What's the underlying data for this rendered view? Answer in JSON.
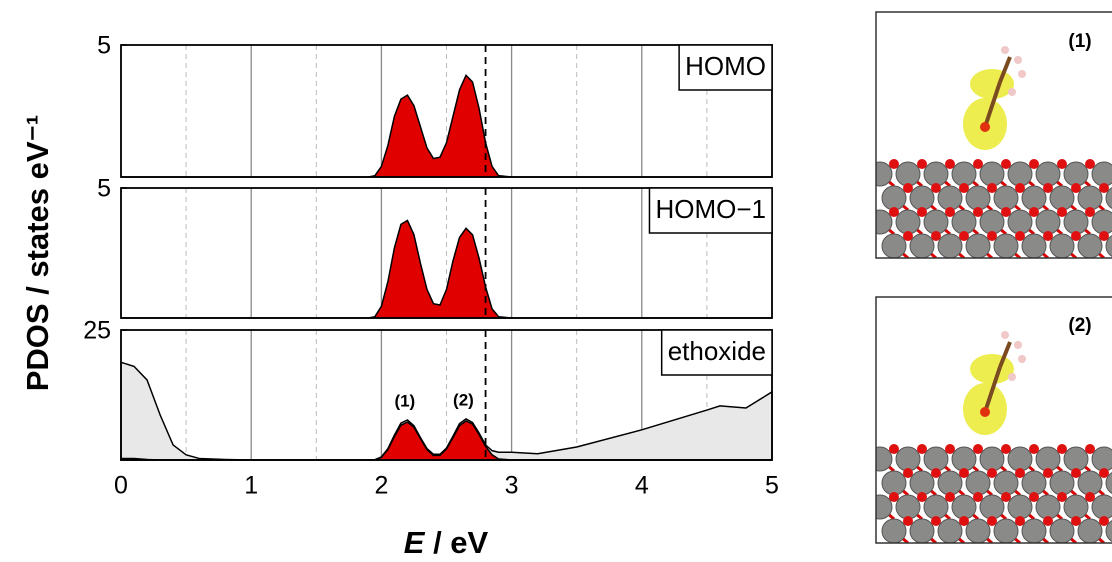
{
  "chart_data": [
    {
      "type": "area",
      "label": "HOMO",
      "xlim": [
        0,
        5
      ],
      "xticks": [
        0,
        1,
        2,
        3,
        4,
        5
      ],
      "xminor": [
        0.5,
        1.5,
        2.5,
        3.5,
        4.5
      ],
      "ylim": [
        0,
        5
      ],
      "yticks": [
        5
      ],
      "marker_line": 2.8,
      "x": [
        0,
        0.5,
        1,
        1.5,
        1.9,
        1.95,
        2.0,
        2.05,
        2.1,
        2.15,
        2.2,
        2.25,
        2.3,
        2.35,
        2.4,
        2.45,
        2.5,
        2.55,
        2.6,
        2.65,
        2.7,
        2.75,
        2.8,
        2.85,
        2.9,
        3.0,
        3.5,
        4,
        4.5,
        5
      ],
      "series": [
        {
          "color": "#e00000",
          "values": [
            0,
            0,
            0,
            0,
            0,
            0.05,
            0.4,
            1.2,
            2.3,
            2.95,
            3.1,
            2.7,
            1.9,
            1.1,
            0.7,
            0.75,
            1.3,
            2.3,
            3.3,
            3.85,
            3.6,
            2.6,
            1.3,
            0.4,
            0.05,
            0,
            0,
            0,
            0,
            0
          ]
        }
      ]
    },
    {
      "type": "area",
      "label": "HOMO−1",
      "y_label": "PDOS / states eV⁻¹",
      "xlim": [
        0,
        5
      ],
      "xticks": [
        0,
        1,
        2,
        3,
        4,
        5
      ],
      "xminor": [
        0.5,
        1.5,
        2.5,
        3.5,
        4.5
      ],
      "ylim": [
        0,
        5
      ],
      "yticks": [
        5
      ],
      "marker_line": 2.8,
      "x": [
        0,
        0.5,
        1,
        1.5,
        1.9,
        1.95,
        2.0,
        2.05,
        2.1,
        2.15,
        2.2,
        2.25,
        2.3,
        2.35,
        2.4,
        2.45,
        2.5,
        2.55,
        2.6,
        2.65,
        2.7,
        2.75,
        2.8,
        2.85,
        2.9,
        3.0,
        3.5,
        4,
        4.5,
        5
      ],
      "series": [
        {
          "color": "#e00000",
          "values": [
            0,
            0,
            0,
            0,
            0,
            0.05,
            0.45,
            1.4,
            2.7,
            3.6,
            3.75,
            3.2,
            2.1,
            1.1,
            0.55,
            0.5,
            1.1,
            2.2,
            3.1,
            3.45,
            3.2,
            2.3,
            1.2,
            0.35,
            0.05,
            0,
            0,
            0,
            0,
            0
          ]
        }
      ]
    },
    {
      "type": "area",
      "label": "ethoxide",
      "x_label": [
        "E",
        " / eV"
      ],
      "xlim": [
        0,
        5
      ],
      "xticks": [
        0,
        1,
        2,
        3,
        4,
        5
      ],
      "xminor": [
        0.5,
        1.5,
        2.5,
        3.5,
        4.5
      ],
      "ylim": [
        0,
        25
      ],
      "yticks": [
        25
      ],
      "marker_line": 2.8,
      "x": [
        0,
        0.1,
        0.2,
        0.3,
        0.4,
        0.5,
        0.6,
        0.8,
        1,
        1.5,
        1.9,
        1.95,
        2.0,
        2.05,
        2.1,
        2.15,
        2.2,
        2.25,
        2.3,
        2.35,
        2.4,
        2.45,
        2.5,
        2.55,
        2.6,
        2.65,
        2.7,
        2.75,
        2.8,
        2.85,
        2.9,
        3.0,
        3.2,
        3.5,
        4,
        4.5,
        4.6,
        4.8,
        5
      ],
      "series": [
        {
          "color": "#e8e8e8",
          "values": [
            18.8,
            18,
            15.4,
            8.7,
            2.9,
            1,
            0.3,
            0.1,
            0,
            0,
            0,
            0.05,
            0.6,
            2.2,
            4.8,
            7.1,
            7.7,
            6.6,
            4.3,
            2.2,
            1.1,
            1.1,
            2.3,
            4.6,
            7,
            7.9,
            7.2,
            5.2,
            2.9,
            1.8,
            1.5,
            1.5,
            1.2,
            2.5,
            5.8,
            9.6,
            10.4,
            10,
            13.1
          ]
        },
        {
          "color": "#e00000",
          "values": [
            0.3,
            0.3,
            0.1,
            0,
            0,
            0,
            0,
            0,
            0,
            0,
            0,
            0.03,
            0.5,
            2,
            4.5,
            6.7,
            7.3,
            6.3,
            4.1,
            2,
            0.9,
            0.9,
            2.1,
            4.3,
            6.6,
            7.5,
            6.9,
            4.9,
            2.6,
            1,
            0.2,
            0,
            0,
            0,
            0,
            0,
            0,
            0,
            0
          ]
        }
      ],
      "annotations": [
        {
          "text": "(1)",
          "x": 2.18
        },
        {
          "text": "(2)",
          "x": 2.63
        }
      ]
    }
  ],
  "structures": [
    {
      "label": "(1)"
    },
    {
      "label": "(2)"
    }
  ]
}
